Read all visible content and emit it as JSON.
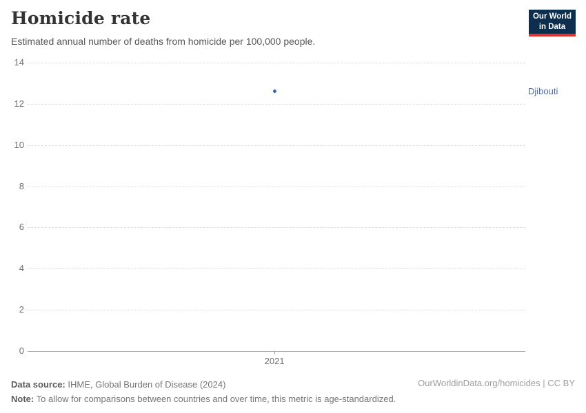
{
  "header": {
    "title": "Homicide rate",
    "subtitle": "Estimated annual number of deaths from homicide per 100,000 people.",
    "logo": {
      "line1": "Our World",
      "line2": "in Data",
      "bg_color": "#0d2e4e",
      "accent_color": "#e0342c"
    }
  },
  "chart_data": {
    "type": "scatter",
    "title": "Homicide rate",
    "xlabel": "",
    "ylabel": "",
    "series": [
      {
        "name": "Djibouti",
        "x": [
          2021
        ],
        "values": [
          12.6
        ],
        "color": "#3d66a8",
        "label_color": "#4c6a9c"
      }
    ],
    "x_ticks": [
      "2021"
    ],
    "y_ticks": [
      0,
      2,
      4,
      6,
      8,
      10,
      12,
      14
    ],
    "ylim": [
      0,
      14
    ],
    "grid": "horizontal-dashed",
    "legend_position": "right-entity-label",
    "entity_label": "Djibouti"
  },
  "footer": {
    "data_source_label": "Data source:",
    "data_source_text": " IHME, Global Burden of Disease (2024)",
    "note_label": "Note:",
    "note_text": " To allow for comparisons between countries and over time, this metric is age-standardized.",
    "credit": "OurWorldinData.org/homicides | CC BY"
  }
}
